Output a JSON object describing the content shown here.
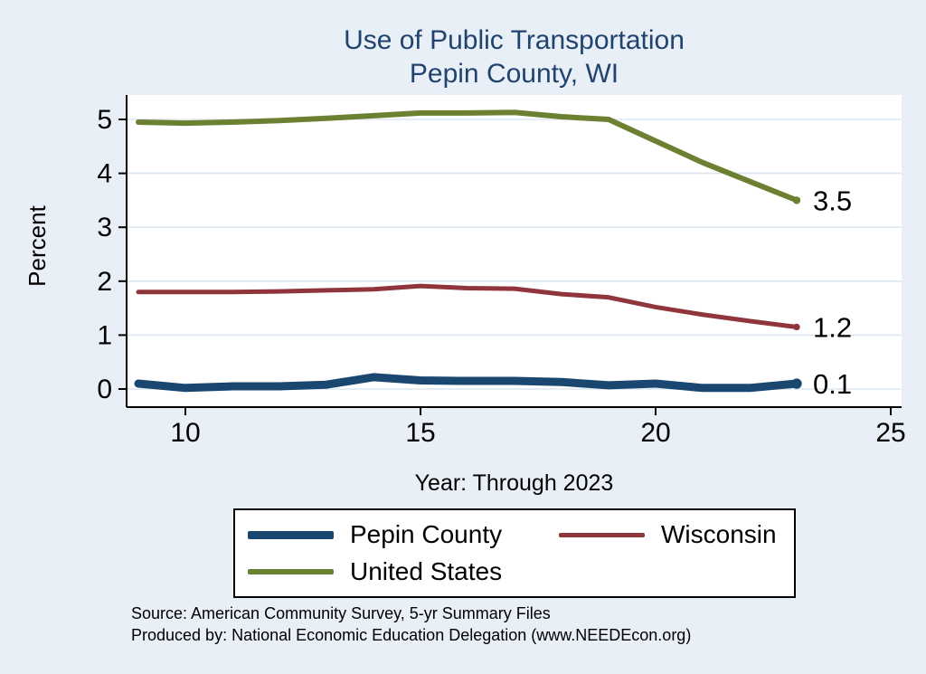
{
  "title": {
    "line1": "Use of Public Transportation",
    "line2": "Pepin County, WI"
  },
  "axis": {
    "ylabel": "Percent",
    "xlabel": "Year: Through 2023"
  },
  "notes": [
    "Source: American Community Survey, 5-yr Summary Files",
    "Produced by: National Economic Education Delegation (www.NEEDEcon.org)"
  ],
  "theme": {
    "background": "#e9eff6",
    "plot_background": "#ffffff",
    "grid_color": "#dce6f0",
    "title_color": "#21436f",
    "axis_color": "#000000"
  },
  "chart_data": {
    "type": "line",
    "title": "Use of Public Transportation — Pepin County, WI",
    "xlabel": "Year: Through 2023",
    "ylabel": "Percent",
    "x": [
      9,
      10,
      11,
      12,
      13,
      14,
      15,
      16,
      17,
      18,
      19,
      20,
      21,
      22,
      23
    ],
    "xticks": [
      10,
      15,
      20,
      25
    ],
    "yticks": [
      0,
      1,
      2,
      3,
      4,
      5
    ],
    "xlim": [
      8.75,
      25.45
    ],
    "ylim": [
      -0.34,
      5.45
    ],
    "grid": true,
    "legend_position": "bottom",
    "series": [
      {
        "name": "Pepin County",
        "color": "#1a476f",
        "line_width": 9,
        "end_label": "0.1",
        "values": [
          0.1,
          0.02,
          0.05,
          0.05,
          0.08,
          0.22,
          0.16,
          0.15,
          0.15,
          0.13,
          0.07,
          0.1,
          0.02,
          0.02,
          0.1
        ]
      },
      {
        "name": "Wisconsin",
        "color": "#90353b",
        "line_width": 5,
        "end_label": "1.2",
        "values": [
          1.8,
          1.8,
          1.8,
          1.81,
          1.83,
          1.85,
          1.91,
          1.87,
          1.86,
          1.76,
          1.7,
          1.52,
          1.38,
          1.26,
          1.15
        ]
      },
      {
        "name": "United States",
        "color": "#6b8031",
        "line_width": 6,
        "end_label": "3.5",
        "values": [
          4.95,
          4.93,
          4.95,
          4.98,
          5.02,
          5.07,
          5.12,
          5.12,
          5.13,
          5.05,
          5.0,
          4.6,
          4.2,
          3.85,
          3.5
        ]
      }
    ]
  }
}
